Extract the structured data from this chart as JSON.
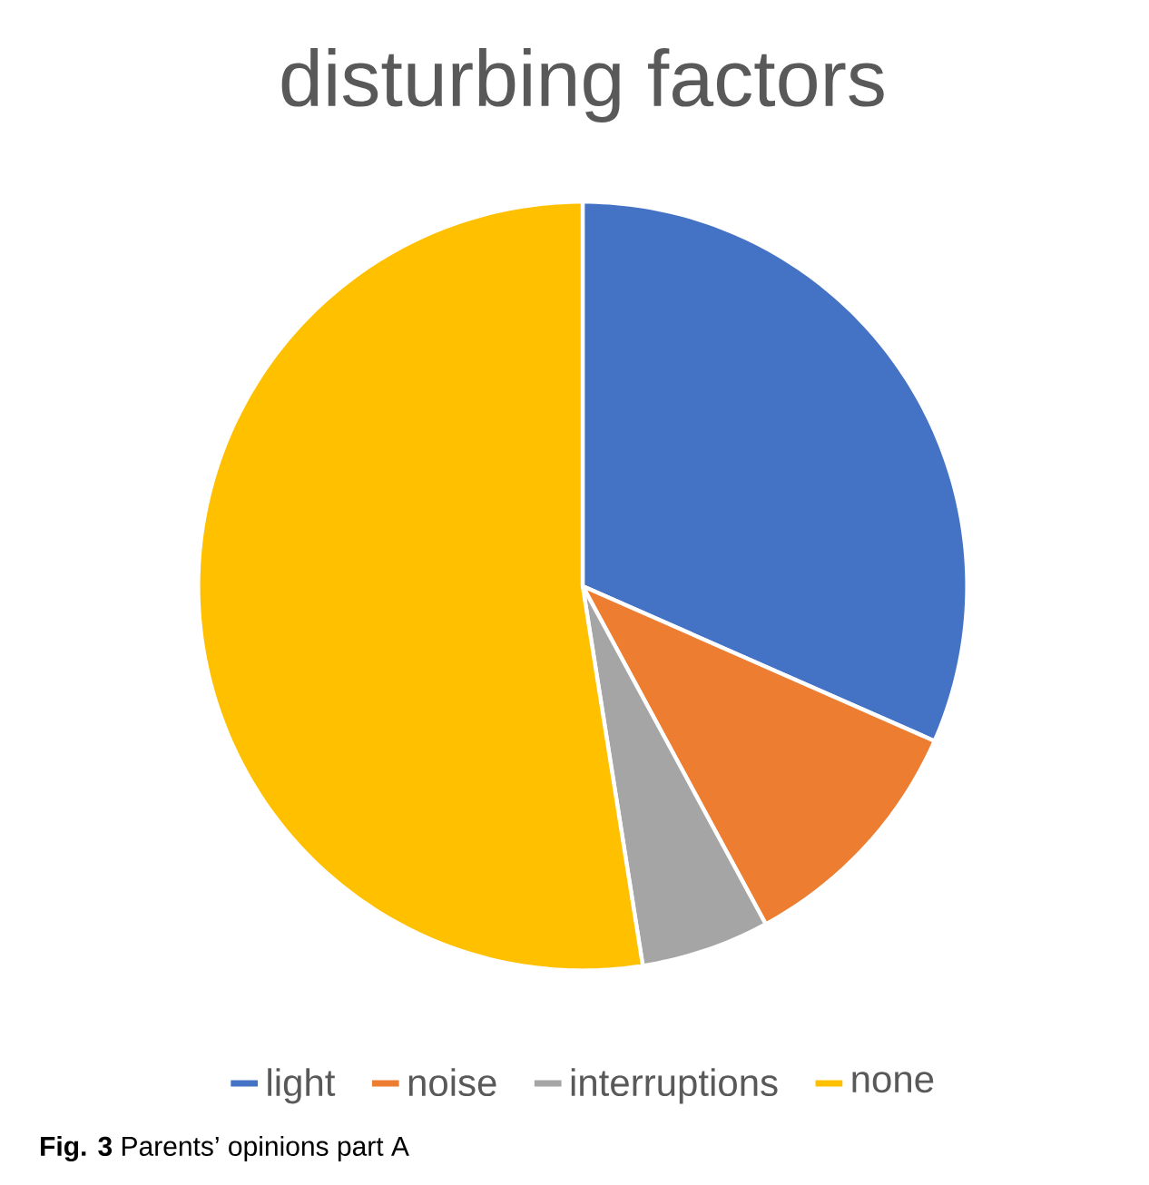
{
  "chart_data": {
    "type": "pie",
    "title": "disturbing factors",
    "categories": [
      "light",
      "noise",
      "interruptions",
      "none"
    ],
    "values": [
      31.6,
      10.5,
      5.4,
      52.5
    ],
    "colors": [
      "#4472c4",
      "#ed7d31",
      "#a5a5a5",
      "#ffc000"
    ],
    "legend": "bottom",
    "annotations": [
      "**Fig. 3** Parents’ opinions part A"
    ]
  }
}
